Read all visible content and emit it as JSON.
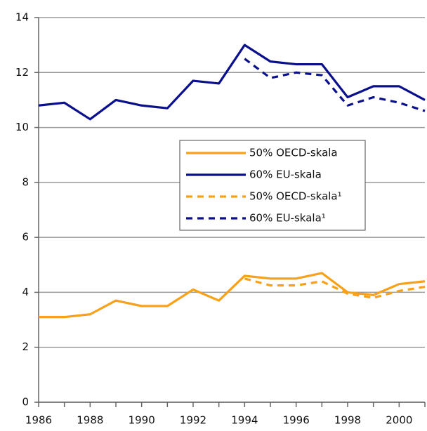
{
  "chart_data": {
    "type": "line",
    "x": [
      1986,
      1987,
      1988,
      1989,
      1990,
      1991,
      1992,
      1993,
      1994,
      1995,
      1996,
      1997,
      1998,
      1999,
      2000,
      2001
    ],
    "series": [
      {
        "name": "50% OECD-skala",
        "color": "#f7a11a",
        "dashed": false,
        "values": [
          3.1,
          3.1,
          3.2,
          3.7,
          3.5,
          3.5,
          4.1,
          3.7,
          4.6,
          4.5,
          4.5,
          4.7,
          4.0,
          3.9,
          4.3,
          4.4
        ]
      },
      {
        "name": "60% EU-skala",
        "color": "#0a0f8c",
        "dashed": false,
        "values": [
          10.8,
          10.9,
          10.3,
          11.0,
          10.8,
          10.7,
          11.7,
          11.6,
          13.0,
          12.4,
          12.3,
          12.3,
          11.1,
          11.5,
          11.5,
          11.0
        ]
      },
      {
        "name": "50% OECD-skala¹",
        "color": "#f7a11a",
        "dashed": true,
        "values": [
          null,
          null,
          null,
          null,
          null,
          null,
          null,
          null,
          4.5,
          4.25,
          4.25,
          4.4,
          3.95,
          3.8,
          4.05,
          4.2
        ]
      },
      {
        "name": "60% EU-skala¹",
        "color": "#0a0f8c",
        "dashed": true,
        "values": [
          null,
          null,
          null,
          null,
          null,
          null,
          null,
          null,
          12.5,
          11.8,
          12.0,
          11.9,
          10.8,
          11.1,
          10.9,
          10.6
        ]
      }
    ],
    "xlim": [
      1986,
      2001
    ],
    "xticks": [
      1986,
      1988,
      1990,
      1992,
      1994,
      1996,
      1998,
      2000
    ],
    "ylim": [
      0,
      14
    ],
    "yticks": [
      0,
      2,
      4,
      6,
      8,
      10,
      12,
      14
    ],
    "grid": true
  }
}
